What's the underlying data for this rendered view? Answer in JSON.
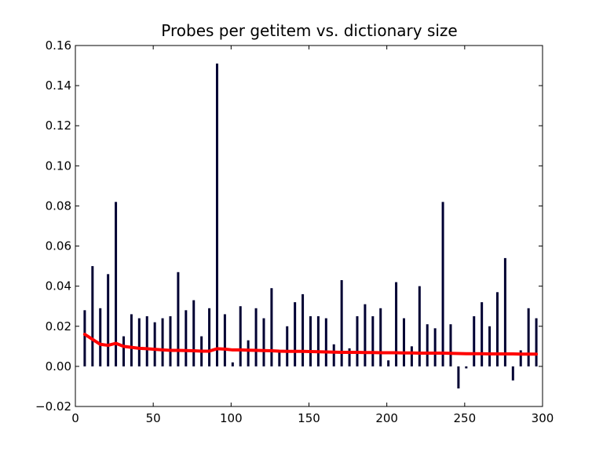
{
  "chart_data": {
    "type": "bar",
    "title": "Probes per getitem vs. dictionary size",
    "xlabel": "",
    "ylabel": "",
    "xlim": [
      0,
      300
    ],
    "ylim": [
      -0.02,
      0.16
    ],
    "xticks": [
      0,
      50,
      100,
      150,
      200,
      250,
      300
    ],
    "yticks": [
      -0.02,
      0.0,
      0.02,
      0.04,
      0.06,
      0.08,
      0.1,
      0.12,
      0.14,
      0.16
    ],
    "ytick_labels": [
      "−0.02",
      "0.00",
      "0.02",
      "0.04",
      "0.06",
      "0.08",
      "0.10",
      "0.12",
      "0.14",
      "0.16"
    ],
    "grid": false,
    "legend": "none",
    "colors": {
      "bar": "#000033",
      "line": "#ff0000"
    },
    "bars": {
      "x": [
        6,
        11,
        16,
        21,
        26,
        31,
        36,
        41,
        46,
        51,
        56,
        61,
        66,
        71,
        76,
        81,
        86,
        91,
        96,
        101,
        106,
        111,
        116,
        121,
        126,
        131,
        136,
        141,
        146,
        151,
        156,
        161,
        166,
        171,
        176,
        181,
        186,
        191,
        196,
        201,
        206,
        211,
        216,
        221,
        226,
        231,
        236,
        241,
        246,
        251,
        256,
        261,
        266,
        271,
        276,
        281,
        286,
        291,
        296
      ],
      "values": [
        0.028,
        0.05,
        0.029,
        0.046,
        0.082,
        0.015,
        0.026,
        0.024,
        0.025,
        0.022,
        0.024,
        0.025,
        0.047,
        0.028,
        0.033,
        0.015,
        0.029,
        0.151,
        0.026,
        0.002,
        0.03,
        0.013,
        0.029,
        0.024,
        0.039,
        0.007,
        0.02,
        0.032,
        0.036,
        0.025,
        0.025,
        0.024,
        0.011,
        0.043,
        0.009,
        0.025,
        0.031,
        0.025,
        0.029,
        0.003,
        0.042,
        0.024,
        0.01,
        0.04,
        0.021,
        0.019,
        0.082,
        0.021,
        -0.011,
        -0.001,
        0.025,
        0.032,
        0.02,
        0.037,
        0.054,
        -0.007,
        0.008,
        0.029,
        0.024
      ]
    },
    "line": {
      "x": [
        6,
        11,
        16,
        21,
        26,
        31,
        36,
        41,
        46,
        51,
        56,
        61,
        66,
        71,
        76,
        81,
        86,
        91,
        96,
        101,
        106,
        111,
        116,
        121,
        126,
        131,
        136,
        141,
        146,
        151,
        156,
        161,
        166,
        171,
        176,
        181,
        186,
        191,
        196,
        201,
        206,
        211,
        216,
        221,
        226,
        231,
        236,
        241,
        246,
        251,
        256,
        261,
        266,
        271,
        276,
        281,
        286,
        291,
        296
      ],
      "values": [
        0.016,
        0.0135,
        0.011,
        0.0105,
        0.0115,
        0.01,
        0.0095,
        0.009,
        0.0088,
        0.0085,
        0.0082,
        0.008,
        0.008,
        0.0079,
        0.0078,
        0.0076,
        0.0076,
        0.0088,
        0.0086,
        0.0082,
        0.0082,
        0.0081,
        0.008,
        0.0079,
        0.0078,
        0.0076,
        0.0075,
        0.0075,
        0.0075,
        0.0074,
        0.0073,
        0.0072,
        0.0071,
        0.007,
        0.007,
        0.007,
        0.0069,
        0.0069,
        0.0068,
        0.0068,
        0.0068,
        0.0067,
        0.0067,
        0.0066,
        0.0066,
        0.0066,
        0.0066,
        0.0065,
        0.0064,
        0.0063,
        0.0063,
        0.0063,
        0.0062,
        0.0062,
        0.0062,
        0.0062,
        0.0061,
        0.0061,
        0.0061
      ]
    }
  }
}
